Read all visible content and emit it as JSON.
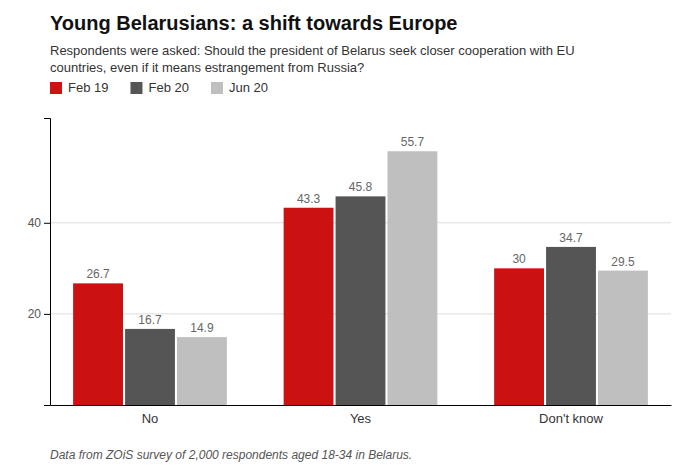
{
  "chart_data": {
    "type": "bar",
    "title": "Young Belarusians: a shift towards Europe",
    "subtitle": "Respondents were asked: Should the president of Belarus seek closer cooperation with EU\ncountries, even if it means estrangement from Russia?",
    "footnote": "Data from ZOiS survey of 2,000 respondents aged 18-34 in Belarus.",
    "categories": [
      "No",
      "Yes",
      "Don't know"
    ],
    "series": [
      {
        "name": "Feb 19",
        "color": "#cc1111",
        "values": [
          26.7,
          43.3,
          30.0
        ],
        "value_labels": [
          "26.7",
          "43.3",
          "30"
        ]
      },
      {
        "name": "Feb 20",
        "color": "#555555",
        "values": [
          16.7,
          45.8,
          34.7
        ],
        "value_labels": [
          "16.7",
          "45.8",
          "34.7"
        ]
      },
      {
        "name": "Jun 20",
        "color": "#c0bfbf",
        "values": [
          14.9,
          55.7,
          29.5
        ],
        "value_labels": [
          "14.9",
          "55.7",
          "29.5"
        ]
      }
    ],
    "ylim": [
      0,
      63
    ],
    "yticks": [
      20,
      40
    ],
    "grid": true,
    "legend": "top-left",
    "data_labels": true
  }
}
